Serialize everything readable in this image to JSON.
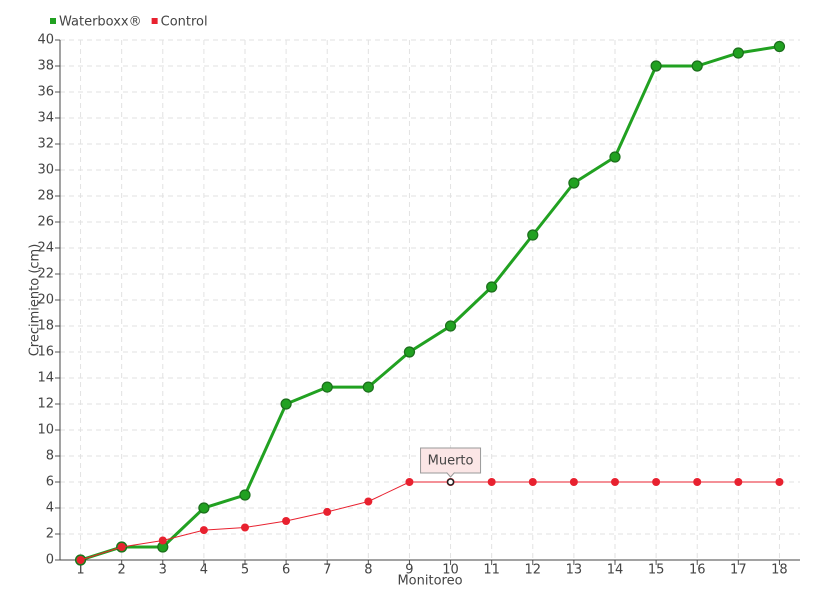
{
  "chart_data": {
    "type": "line",
    "x_label": "Monitoreo",
    "y_label": "Crecimiento (cm)",
    "x": [
      1,
      2,
      3,
      4,
      5,
      6,
      7,
      8,
      9,
      10,
      11,
      12,
      13,
      14,
      15,
      16,
      17,
      18
    ],
    "xlim": [
      0.5,
      18.5
    ],
    "xticks": [
      1,
      2,
      3,
      4,
      5,
      6,
      7,
      8,
      9,
      10,
      11,
      12,
      13,
      14,
      15,
      16,
      17,
      18
    ],
    "ylim": [
      0,
      40
    ],
    "yticks": [
      0,
      2,
      4,
      6,
      8,
      10,
      12,
      14,
      16,
      18,
      20,
      22,
      24,
      26,
      28,
      30,
      32,
      34,
      36,
      38,
      40
    ],
    "grid": true,
    "legend": "top-left",
    "series": [
      {
        "name": "Waterboxx®",
        "color": "#21a121",
        "values": [
          0,
          1,
          1,
          4,
          5,
          12,
          13.3,
          13.3,
          16,
          18,
          21,
          25,
          29,
          31,
          38,
          38,
          39,
          39.5
        ]
      },
      {
        "name": "Control",
        "color": "#e8212f",
        "values": [
          0,
          1,
          1.5,
          2.3,
          2.5,
          3,
          3.7,
          4.5,
          6,
          6,
          6,
          6,
          6,
          6,
          6,
          6,
          6,
          6
        ]
      }
    ],
    "annotations": [
      {
        "text": "Muerto",
        "x": 10,
        "y": 6
      }
    ]
  }
}
